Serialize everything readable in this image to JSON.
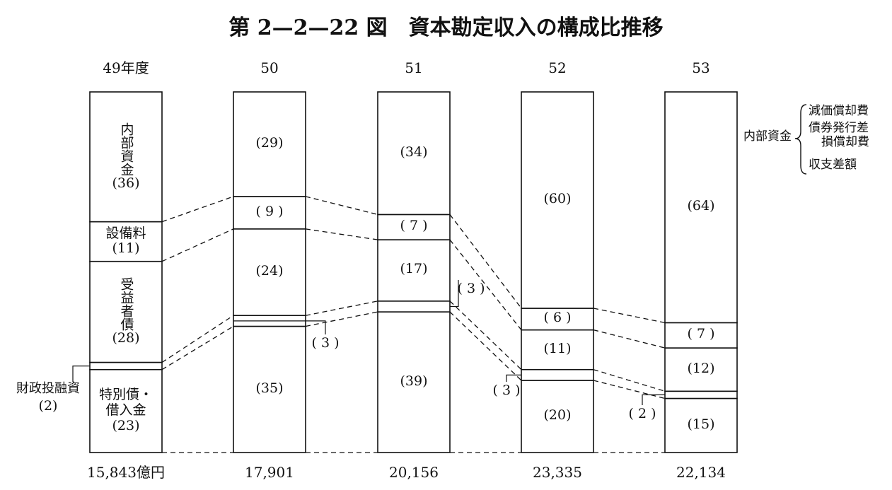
{
  "chart_data": {
    "type": "stacked_percent_bar",
    "title": "第 2—2—22 図　資本勘定収入の構成比推移",
    "categories": [
      "49年度",
      "50",
      "51",
      "52",
      "53"
    ],
    "ylim": [
      0,
      100
    ],
    "series": [
      {
        "name": "特別債・借入金",
        "values": [
          23,
          35,
          39,
          20,
          15
        ],
        "value_labels": [
          "(23)",
          "(35)",
          "(39)",
          "(20)",
          "(15)"
        ]
      },
      {
        "name": "財政投融資",
        "values": [
          2,
          3,
          3,
          3,
          2
        ],
        "value_labels": [
          "(2)",
          "( 3 )",
          "( 3 )",
          "( 3 )",
          "( 2 )"
        ]
      },
      {
        "name": "受益者債",
        "values": [
          28,
          24,
          17,
          11,
          12
        ],
        "value_labels": [
          "(28)",
          "(24)",
          "(17)",
          "(11)",
          "(12)"
        ]
      },
      {
        "name": "設備料",
        "values": [
          11,
          9,
          7,
          6,
          7
        ],
        "value_labels": [
          "(11)",
          "( 9 )",
          "( 7 )",
          "( 6 )",
          "( 7 )"
        ]
      },
      {
        "name": "内部資金",
        "values": [
          36,
          29,
          34,
          60,
          64
        ],
        "value_labels": [
          "(36)",
          "(29)",
          "(34)",
          "(60)",
          "(64)"
        ]
      }
    ],
    "total_labels": [
      "15,843億円",
      "17,901",
      "20,156",
      "23,335",
      "22,134"
    ],
    "annotation": {
      "label": "内部資金",
      "items": [
        "減価償却費",
        "債券発行差損償却費",
        "収支差額"
      ]
    }
  }
}
